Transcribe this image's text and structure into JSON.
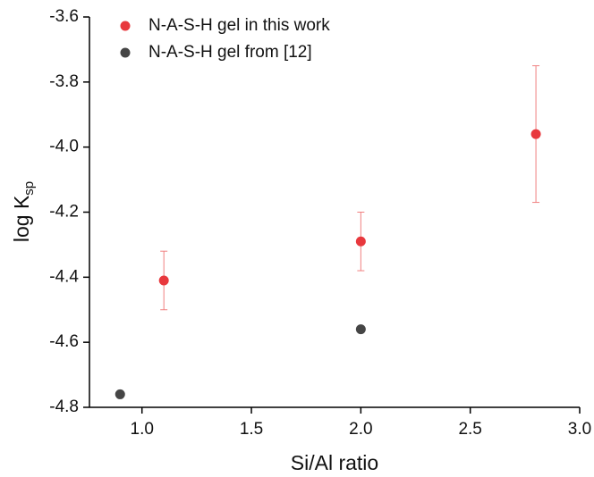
{
  "chart_data": {
    "type": "scatter",
    "xlabel": "Si/Al ratio",
    "ylabel": "log K",
    "ylabel_sub": "sp",
    "series": [
      {
        "name": "N-A-S-H gel in this work",
        "color": "#e8383d",
        "errcolor": "#f08080",
        "x": [
          1.1,
          2.0,
          2.8
        ],
        "values": [
          -4.41,
          -4.29,
          -3.96
        ],
        "errors": [
          0.09,
          0.09,
          0.21
        ]
      },
      {
        "name": "N-A-S-H gel from [12]",
        "color": "#454545",
        "x": [
          0.9,
          2.0
        ],
        "values": [
          -4.76,
          -4.56
        ]
      }
    ],
    "xlim": [
      0.76,
      3.0
    ],
    "xticks": [
      {
        "value": 1,
        "label": "1.0"
      },
      1.5,
      {
        "value": 2,
        "label": "2.0"
      },
      2.5,
      {
        "value": 3,
        "label": "3.0"
      }
    ],
    "ylim": [
      -4.8,
      -3.6
    ],
    "yticks": [
      -4.8,
      -4.6,
      -4.4,
      -4.2,
      {
        "value": -4,
        "label": "-4.0"
      },
      -3.8,
      -3.6
    ],
    "legend": "top-left"
  }
}
